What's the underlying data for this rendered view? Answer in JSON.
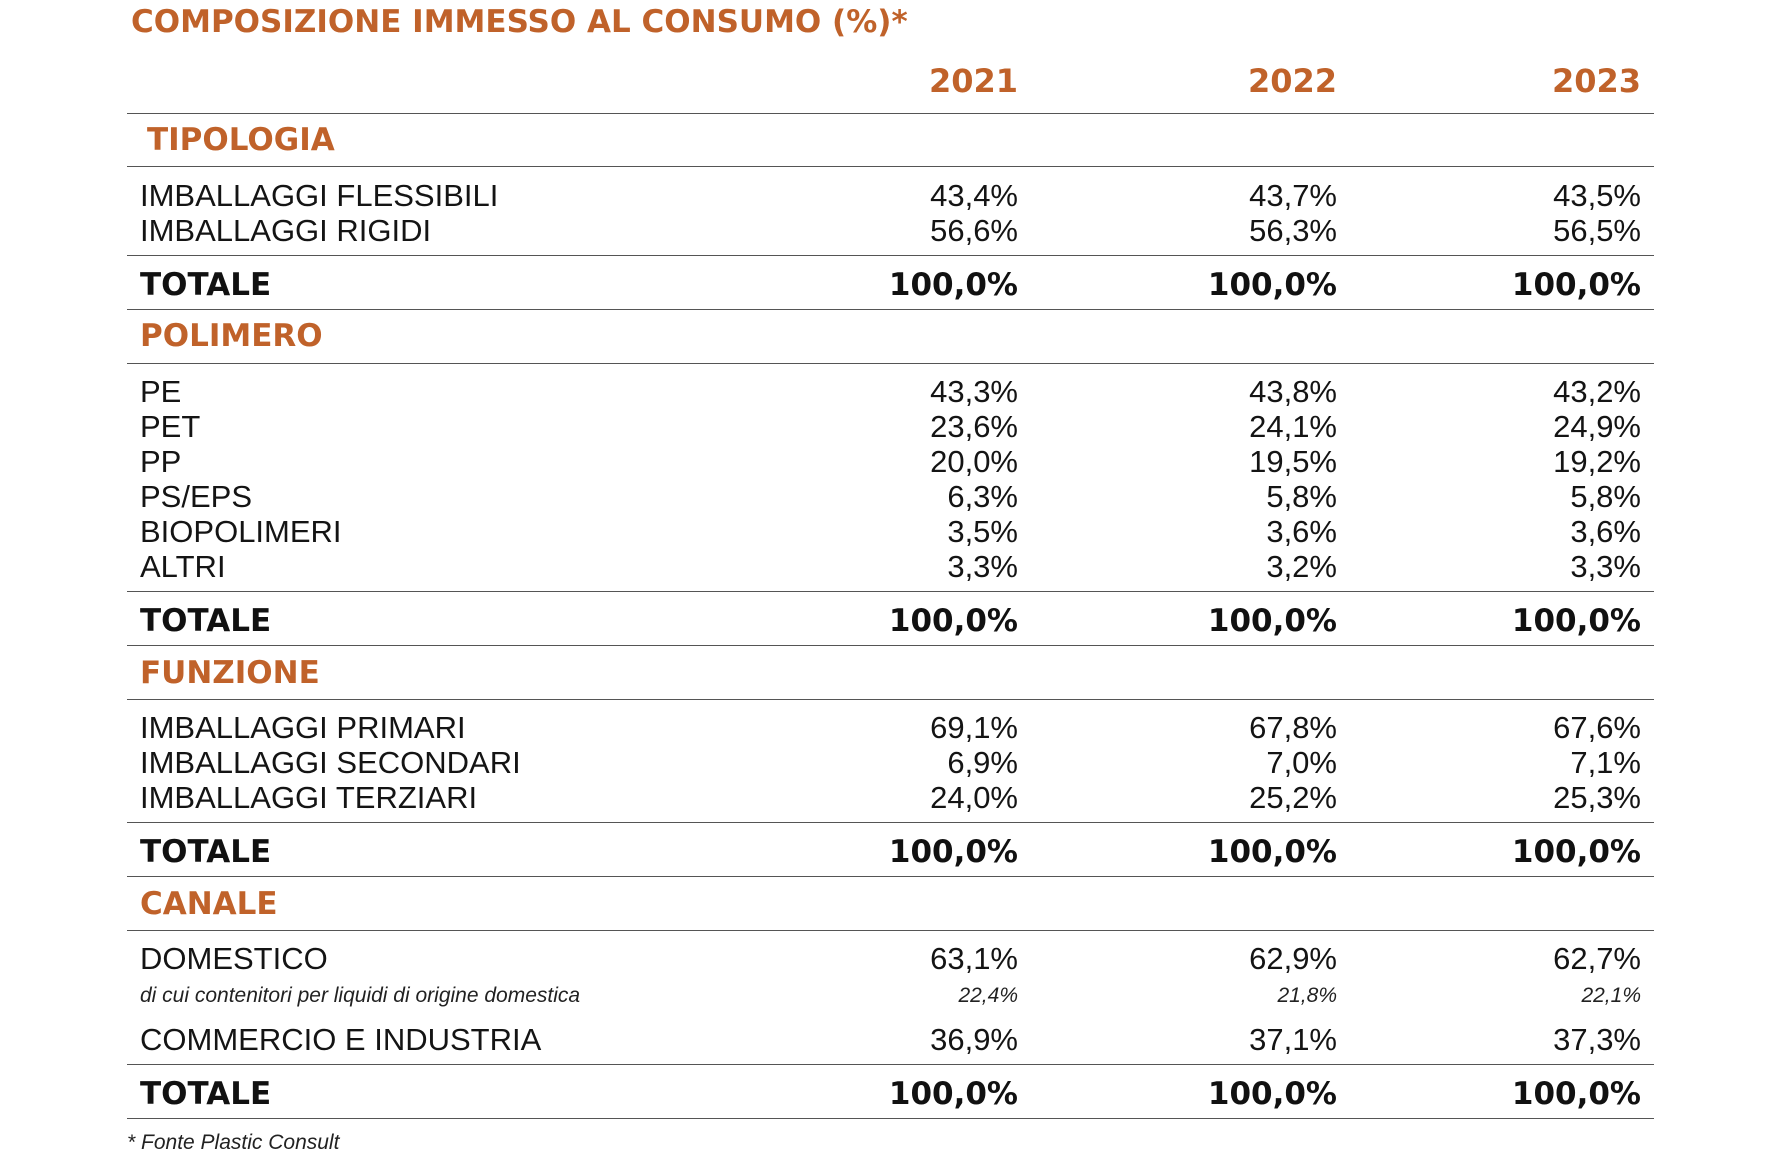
{
  "title": "COMPOSIZIONE IMMESSO AL CONSUMO (%)*",
  "years": [
    "2021",
    "2022",
    "2023"
  ],
  "sections": {
    "tipologia": {
      "heading": "TIPOLOGIA",
      "rows": [
        {
          "label": "IMBALLAGGI FLESSIBILI",
          "v2021": "43,4%",
          "v2022": "43,7%",
          "v2023": "43,5%"
        },
        {
          "label": "IMBALLAGGI RIGIDI",
          "v2021": "56,6%",
          "v2022": "56,3%",
          "v2023": "56,5%"
        }
      ],
      "total": {
        "label": "TOTALE",
        "v2021": "100,0%",
        "v2022": "100,0%",
        "v2023": "100,0%"
      }
    },
    "polimero": {
      "heading": "POLIMERO",
      "rows": [
        {
          "label": "PE",
          "v2021": "43,3%",
          "v2022": "43,8%",
          "v2023": "43,2%"
        },
        {
          "label": "PET",
          "v2021": "23,6%",
          "v2022": "24,1%",
          "v2023": "24,9%"
        },
        {
          "label": "PP",
          "v2021": "20,0%",
          "v2022": "19,5%",
          "v2023": "19,2%"
        },
        {
          "label": "PS/EPS",
          "v2021": "6,3%",
          "v2022": "5,8%",
          "v2023": "5,8%"
        },
        {
          "label": "BIOPOLIMERI",
          "v2021": "3,5%",
          "v2022": "3,6%",
          "v2023": "3,6%"
        },
        {
          "label": "ALTRI",
          "v2021": "3,3%",
          "v2022": "3,2%",
          "v2023": "3,3%"
        }
      ],
      "total": {
        "label": "TOTALE",
        "v2021": "100,0%",
        "v2022": "100,0%",
        "v2023": "100,0%"
      }
    },
    "funzione": {
      "heading": "FUNZIONE",
      "rows": [
        {
          "label": "IMBALLAGGI PRIMARI",
          "v2021": "69,1%",
          "v2022": "67,8%",
          "v2023": "67,6%"
        },
        {
          "label": "IMBALLAGGI SECONDARI",
          "v2021": "6,9%",
          "v2022": "7,0%",
          "v2023": "7,1%"
        },
        {
          "label": "IMBALLAGGI TERZIARI",
          "v2021": "24,0%",
          "v2022": "25,2%",
          "v2023": "25,3%"
        }
      ],
      "total": {
        "label": "TOTALE",
        "v2021": "100,0%",
        "v2022": "100,0%",
        "v2023": "100,0%"
      }
    },
    "canale": {
      "heading": "CANALE",
      "rows": [
        {
          "label": "DOMESTICO",
          "v2021": "63,1%",
          "v2022": "62,9%",
          "v2023": "62,7%"
        },
        {
          "label": "di cui contenitori per liquidi di origine domestica",
          "v2021": "22,4%",
          "v2022": "21,8%",
          "v2023": "22,1%"
        },
        {
          "label": "COMMERCIO E INDUSTRIA",
          "v2021": "36,9%",
          "v2022": "37,1%",
          "v2023": "37,3%"
        }
      ],
      "total": {
        "label": "TOTALE",
        "v2021": "100,0%",
        "v2022": "100,0%",
        "v2023": "100,0%"
      }
    }
  },
  "footnote": "* Fonte Plastic Consult"
}
